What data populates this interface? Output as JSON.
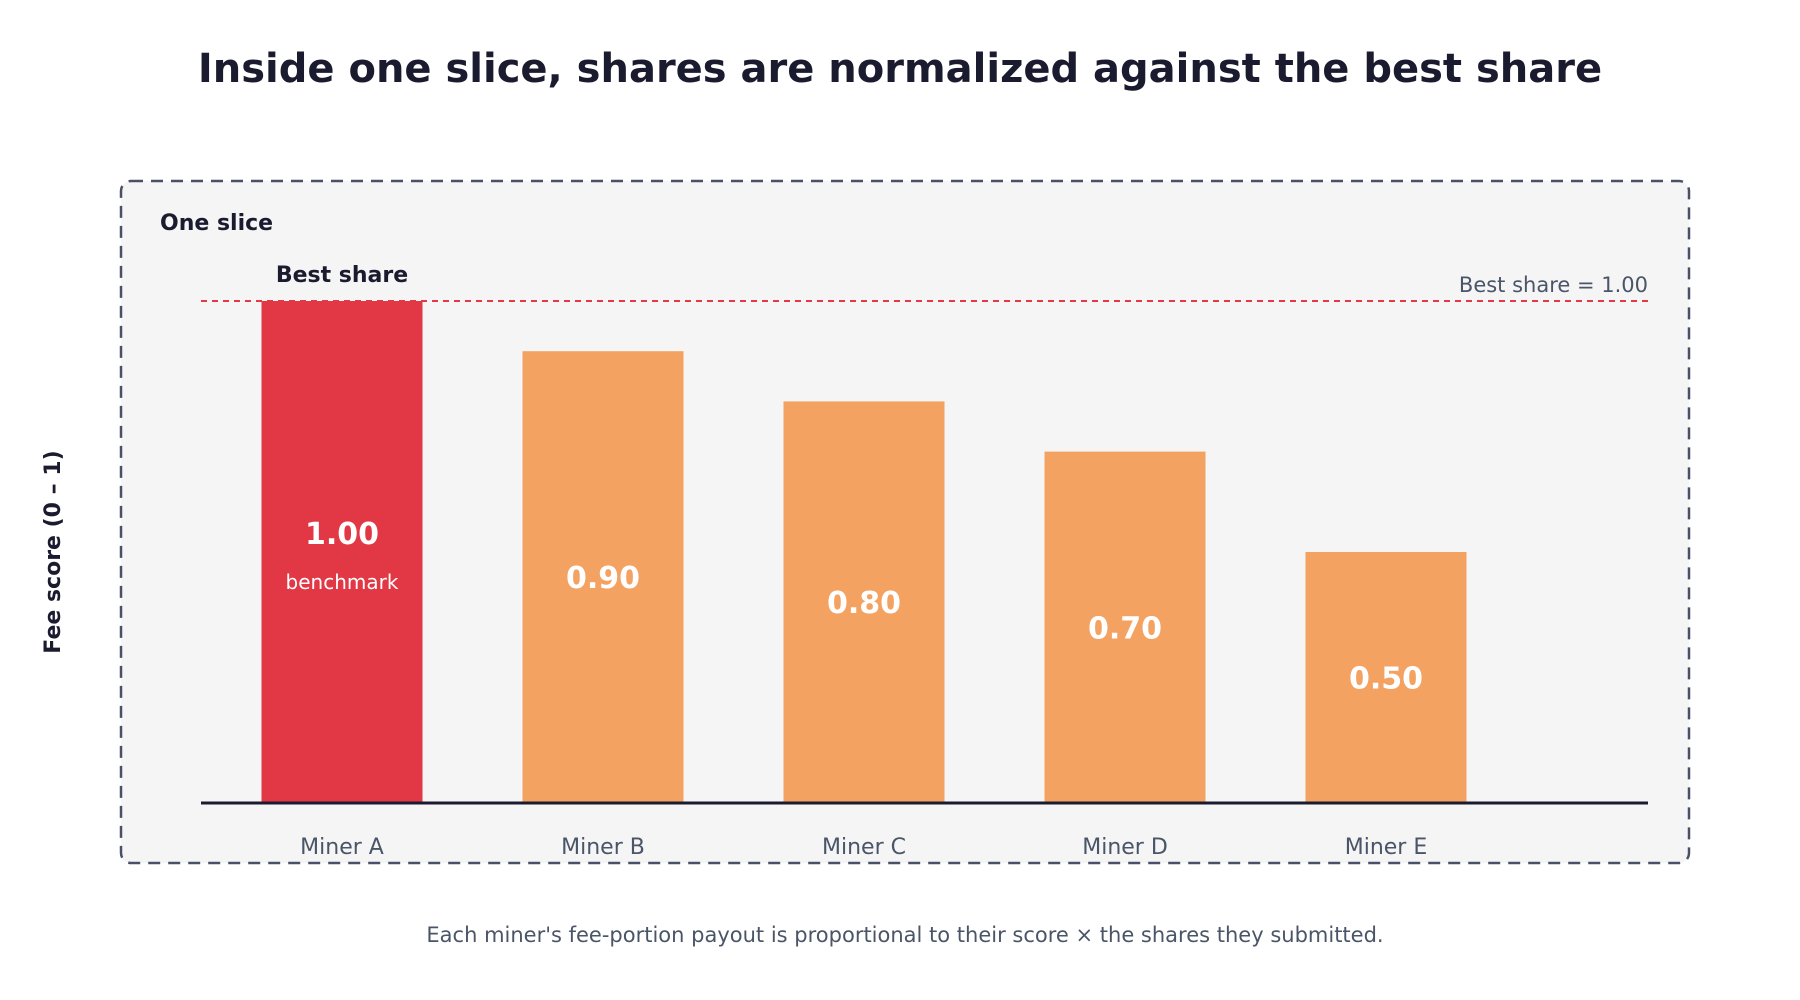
{
  "chart_data": {
    "type": "bar",
    "title": "Inside one slice, shares are normalized against the best share",
    "panel_label": "One slice",
    "ylabel": "Fee score (0 – 1)",
    "xlabel": "",
    "ylim": [
      0,
      1
    ],
    "grid": false,
    "categories": [
      "Miner A",
      "Miner B",
      "Miner C",
      "Miner D",
      "Miner E"
    ],
    "values": [
      1.0,
      0.9,
      0.8,
      0.7,
      0.5
    ],
    "value_labels": [
      "1.00",
      "0.90",
      "0.80",
      "0.70",
      "0.50"
    ],
    "highlight_index": 0,
    "highlight_sublabel": "benchmark",
    "highlight_annotation": "Best share",
    "reference_line": {
      "value": 1.0,
      "label": "Best share = 1.00",
      "color": "#e53945"
    },
    "colors": {
      "highlight": "#e23744",
      "bar": "#f4a261",
      "axis": "#1a1b2e",
      "panel_bg": "#f5f5f5",
      "panel_border": "#4a5068"
    },
    "caption": "Each miner's fee-portion payout is proportional to their score × the shares they submitted."
  }
}
